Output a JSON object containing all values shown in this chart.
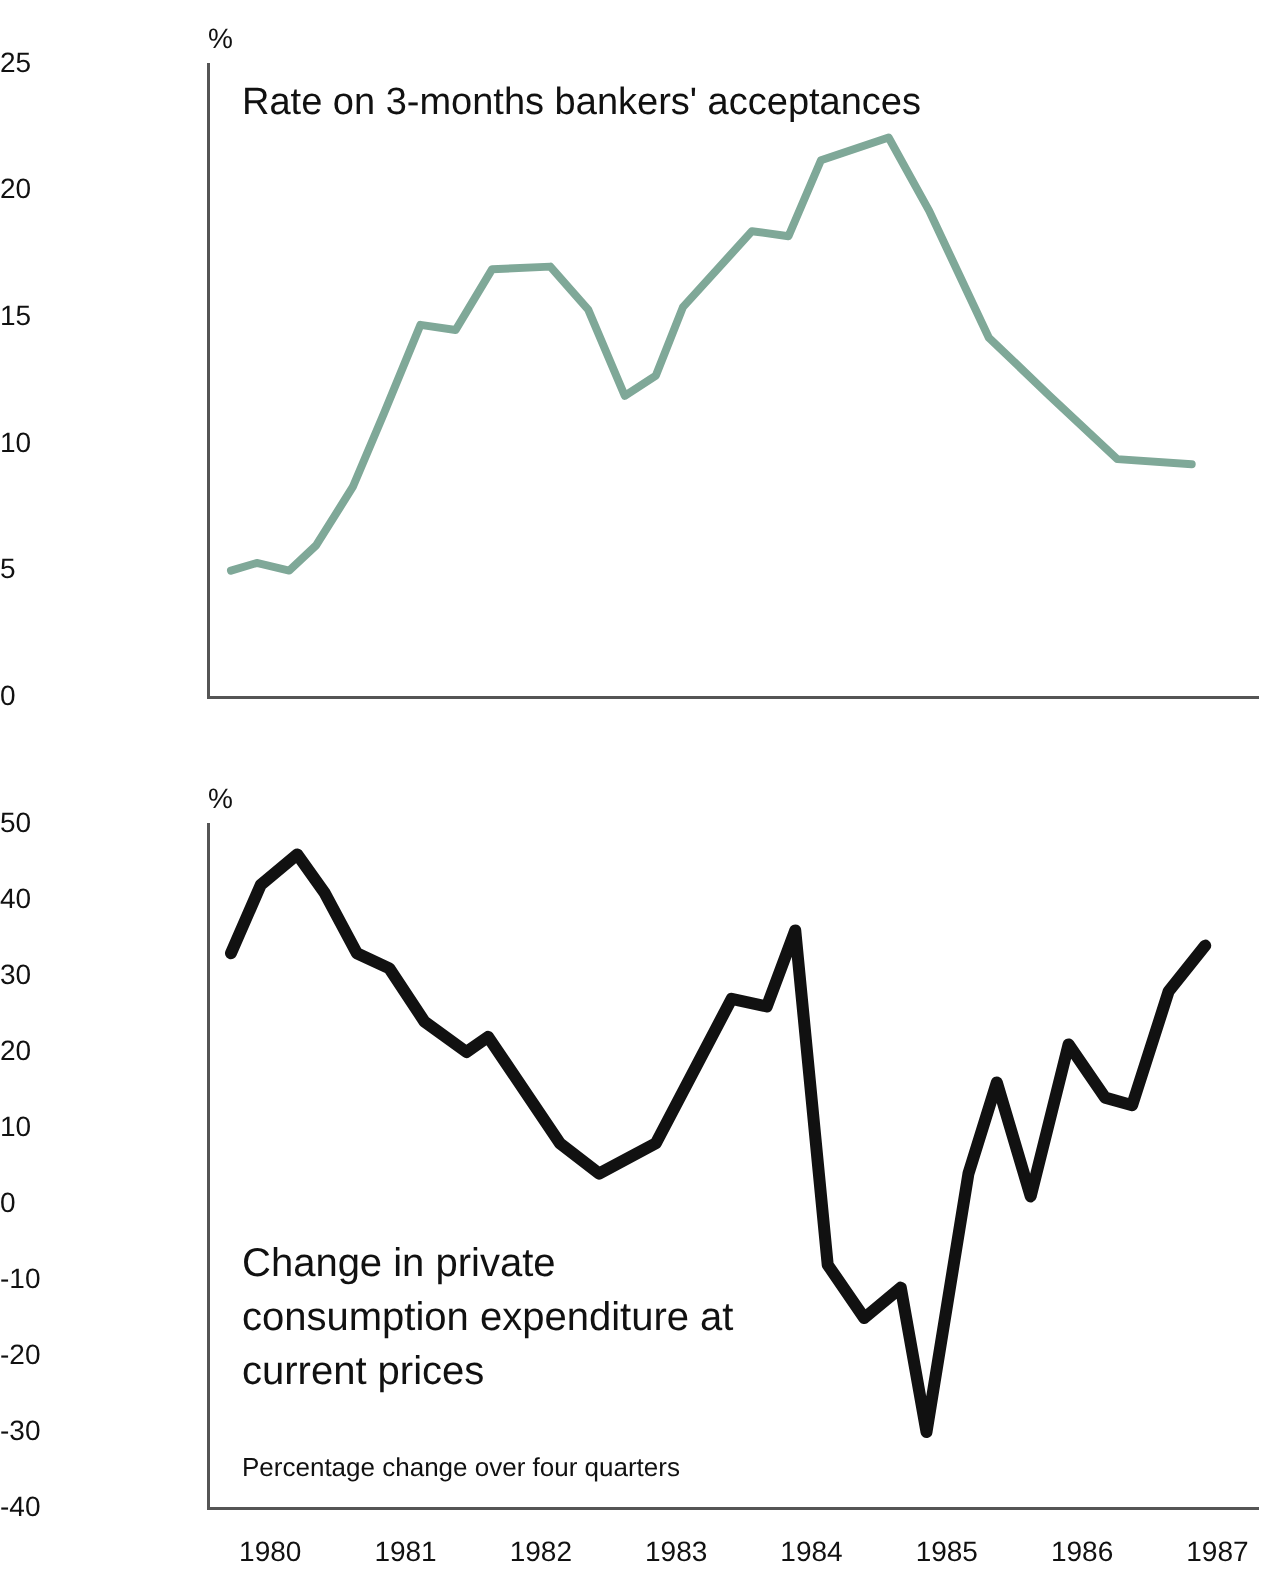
{
  "chart_data": [
    {
      "type": "line",
      "title": "Rate on 3-months bankers' acceptances",
      "ylabel": "%",
      "x": [
        1979.71,
        1979.9,
        1980.14,
        1980.34,
        1980.61,
        1980.84,
        1981.11,
        1981.37,
        1981.64,
        1982.07,
        1982.35,
        1982.62,
        1982.85,
        1983.05,
        1983.56,
        1983.83,
        1984.07,
        1984.57,
        1984.87,
        1985.31,
        1985.76,
        1986.26,
        1986.81
      ],
      "series": [
        {
          "color": "#7fa898",
          "values": [
            5.0,
            5.3,
            5.0,
            6.0,
            8.3,
            11.2,
            14.7,
            14.5,
            16.9,
            17.0,
            15.3,
            11.9,
            12.7,
            15.4,
            18.4,
            18.2,
            21.2,
            22.1,
            19.2,
            14.2,
            11.9,
            9.4,
            9.2
          ]
        }
      ],
      "xlim": [
        1979.54,
        1987.3
      ],
      "xticks": [
        1980,
        1981,
        1982,
        1983,
        1984,
        1985,
        1986,
        1987
      ],
      "ylim": [
        0,
        25
      ],
      "yticks": [
        0,
        5,
        10,
        15,
        20,
        25
      ],
      "tick_labels": "y",
      "grid": false,
      "legend": false,
      "marker": "none",
      "line_style": "solid"
    },
    {
      "type": "line",
      "ylabel": "%",
      "annotations": [
        "Change in private consumption expenditure at current prices",
        "Percentage change over four quarters"
      ],
      "x": [
        1979.71,
        1979.93,
        1980.2,
        1980.4,
        1980.64,
        1980.88,
        1981.14,
        1981.45,
        1981.61,
        1982.14,
        1982.43,
        1982.85,
        1983.41,
        1983.67,
        1983.88,
        1984.12,
        1984.39,
        1984.66,
        1984.85,
        1985.16,
        1985.37,
        1985.62,
        1985.9,
        1986.17,
        1986.37,
        1986.64,
        1986.91
      ],
      "series": [
        {
          "color": "#111111",
          "values": [
            33,
            42,
            46,
            41,
            33,
            31,
            24,
            20,
            22,
            8,
            4,
            8,
            27,
            26,
            36,
            -8,
            -15,
            -11,
            -30,
            4,
            16,
            1,
            21,
            14,
            13,
            28,
            34
          ]
        }
      ],
      "xlim": [
        1979.54,
        1987.3
      ],
      "xticks": [
        1980,
        1981,
        1982,
        1983,
        1984,
        1985,
        1986,
        1987
      ],
      "ylim": [
        -40,
        50
      ],
      "yticks": [
        -40,
        -30,
        -20,
        -10,
        0,
        10,
        20,
        30,
        40,
        50
      ],
      "grid": false,
      "legend": false,
      "marker": "none",
      "line_style": "solid"
    }
  ]
}
